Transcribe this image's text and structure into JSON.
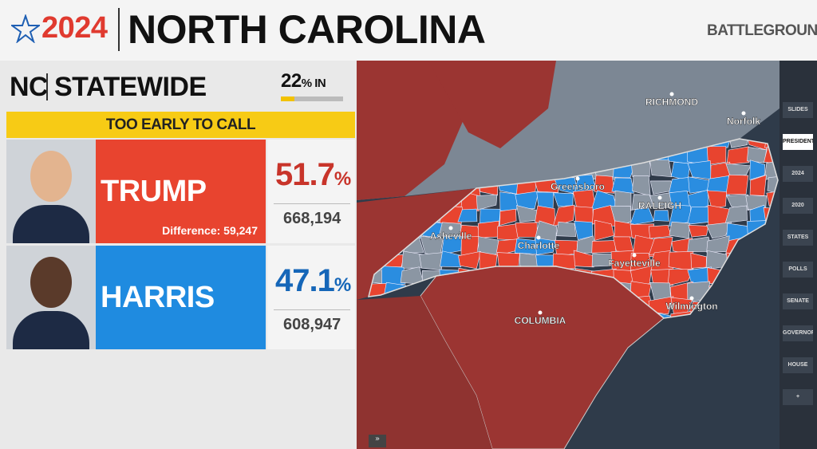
{
  "header": {
    "logo": "2024",
    "title": "NORTH CAROLINA",
    "tag": "BATTLEGROUND"
  },
  "panel": {
    "region": "NC",
    "scope": "STATEWIDE",
    "reporting": {
      "value": 22,
      "unit": "% IN"
    },
    "status": "TOO EARLY TO CALL",
    "candidates": [
      {
        "name": "TRUMP",
        "percent": 51.7,
        "percent_unit": "%",
        "votes": "668,194",
        "note": "Difference: 59,247"
      },
      {
        "name": "HARRIS",
        "percent": 47.1,
        "percent_unit": "%",
        "votes": "608,947"
      }
    ]
  },
  "map": {
    "labels": [
      "RICHMOND",
      "Norfolk",
      "Greensboro",
      "RALEIGH",
      "Asheville",
      "Charlotte",
      "Fayetteville",
      "Wilmington",
      "COLUMBIA"
    ]
  },
  "toolbar": {
    "items": [
      "SLIDES",
      "PRESIDENT",
      "2024",
      "2020",
      "STATES",
      "POLLS",
      "SENATE",
      "GOVERNOR",
      "HOUSE",
      "+"
    ]
  }
}
